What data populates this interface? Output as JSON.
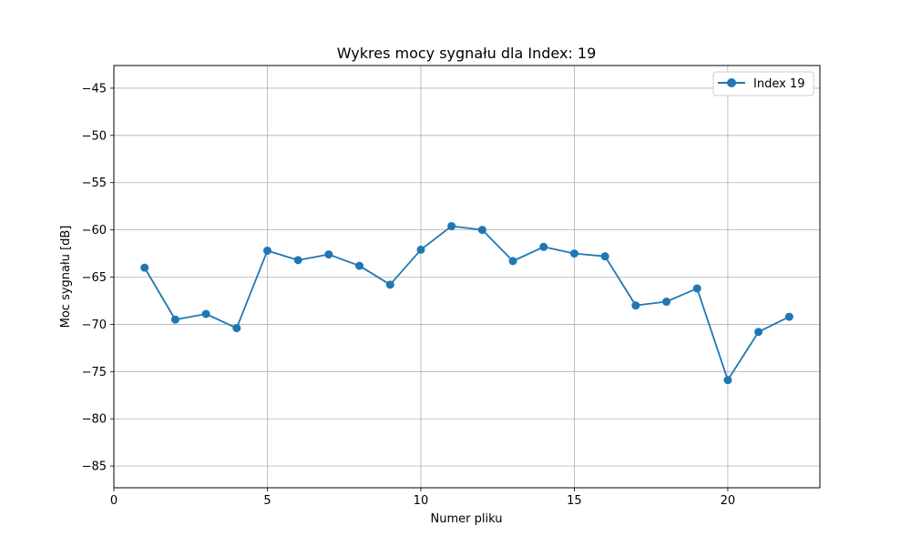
{
  "chart_data": {
    "type": "line",
    "title": "Wykres mocy sygnału dla Index: 19",
    "xlabel": "Numer pliku",
    "ylabel": "Moc sygnału [dB]",
    "xlim": [
      0,
      23
    ],
    "ylim": [
      -87.3,
      -42.6
    ],
    "xticks": [
      0,
      5,
      10,
      15,
      20
    ],
    "yticks": [
      -45,
      -50,
      -55,
      -60,
      -65,
      -70,
      -75,
      -80,
      -85
    ],
    "xtick_labels": [
      "0",
      "5",
      "10",
      "15",
      "20"
    ],
    "ytick_labels": [
      "−45",
      "−50",
      "−55",
      "−60",
      "−65",
      "−70",
      "−75",
      "−80",
      "−85"
    ],
    "grid": true,
    "legend_position": "top-right",
    "series": [
      {
        "name": "Index 19",
        "color": "#1f77b4",
        "marker": "circle",
        "x": [
          1,
          2,
          3,
          4,
          5,
          6,
          7,
          8,
          9,
          10,
          11,
          12,
          13,
          14,
          15,
          16,
          17,
          18,
          19,
          20,
          21,
          22
        ],
        "y": [
          -64.0,
          -69.5,
          -68.9,
          -70.4,
          -62.2,
          -63.2,
          -62.6,
          -63.8,
          -65.8,
          -62.1,
          -59.6,
          -60.0,
          -63.3,
          -61.8,
          -62.5,
          -62.8,
          -68.0,
          -67.6,
          -66.2,
          -75.9,
          -70.8,
          -69.2
        ]
      }
    ]
  }
}
